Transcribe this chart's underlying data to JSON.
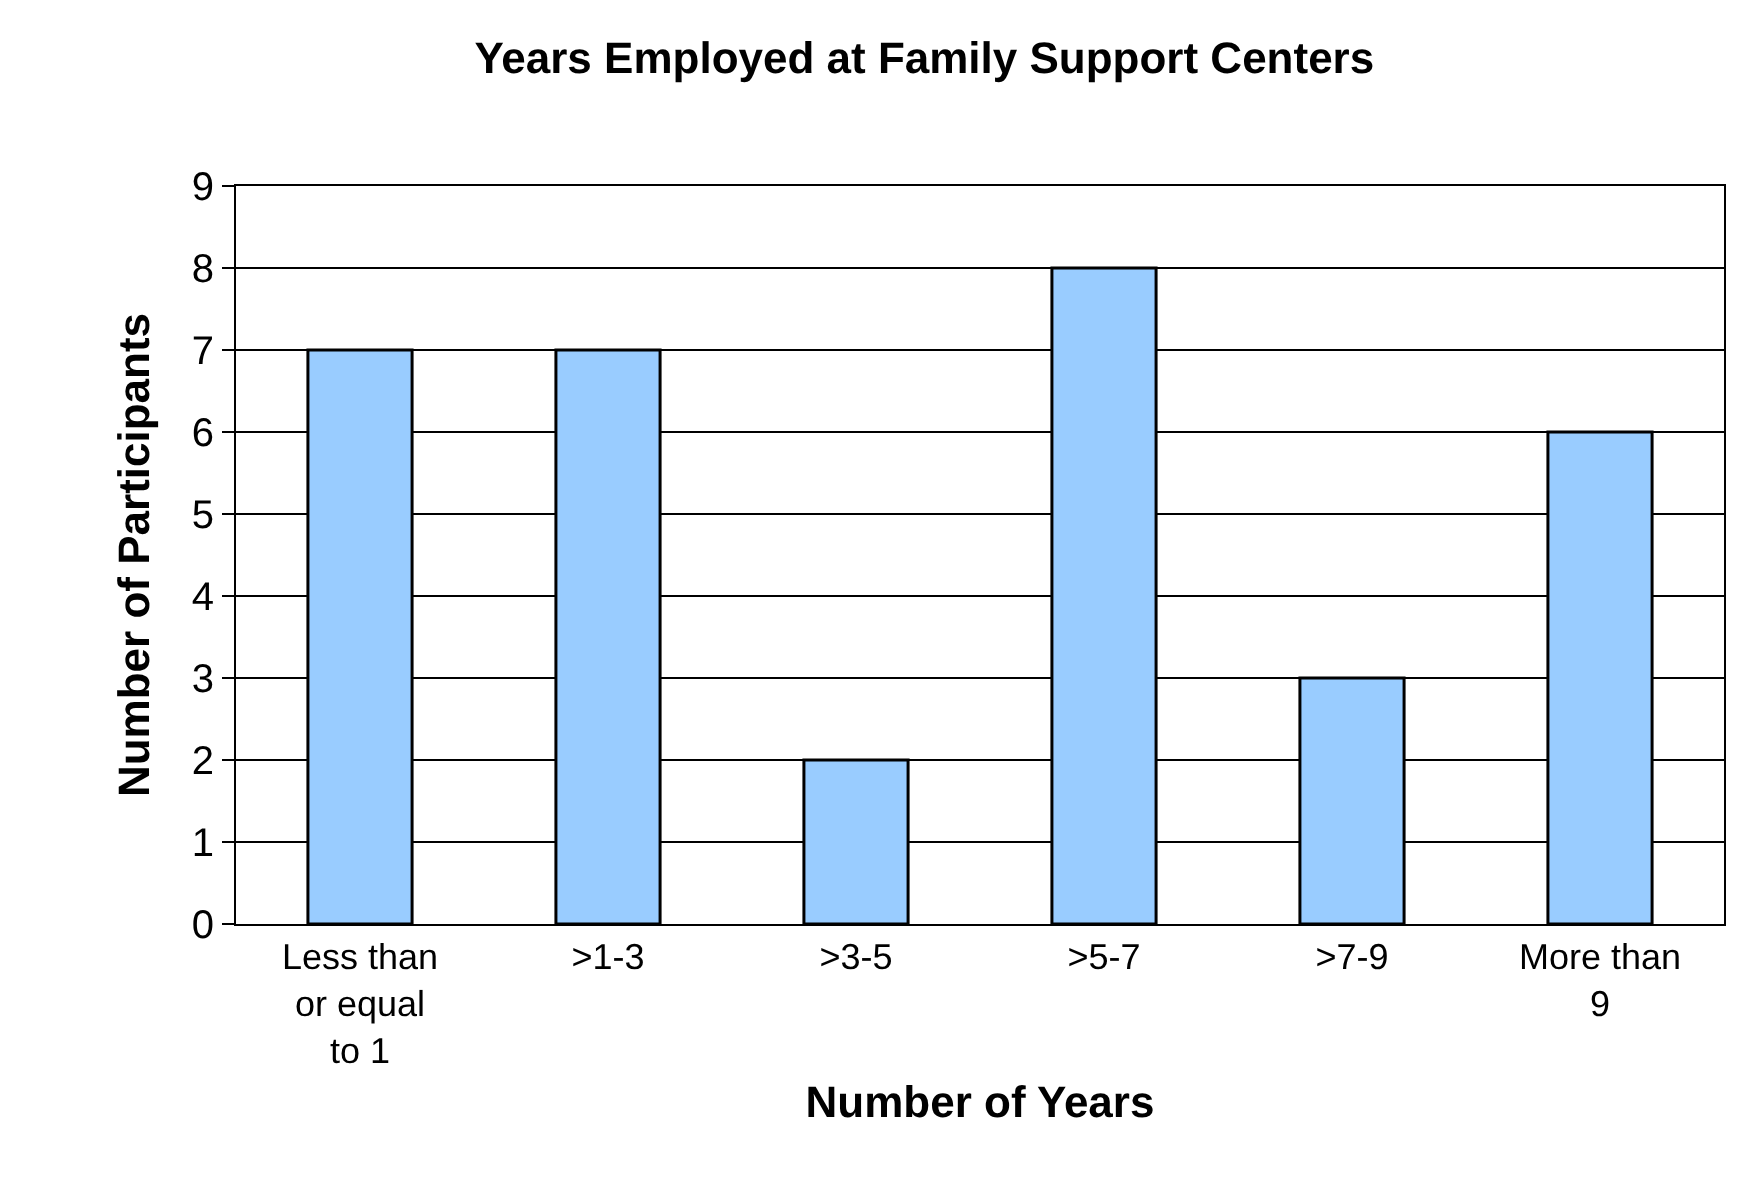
{
  "chart_data": {
    "type": "bar",
    "title": "Years Employed at Family Support Centers",
    "xlabel": "Number of Years",
    "ylabel": "Number of Participants",
    "categories": [
      "Less than or equal to 1",
      ">1-3",
      ">3-5",
      ">5-7",
      ">7-9",
      "More than 9"
    ],
    "values": [
      7,
      7,
      2,
      8,
      3,
      6
    ],
    "color": "#99ccff",
    "ylim": [
      0,
      9
    ],
    "yticks": [
      0,
      1,
      2,
      3,
      4,
      5,
      6,
      7,
      8,
      9
    ],
    "grid": "y"
  }
}
